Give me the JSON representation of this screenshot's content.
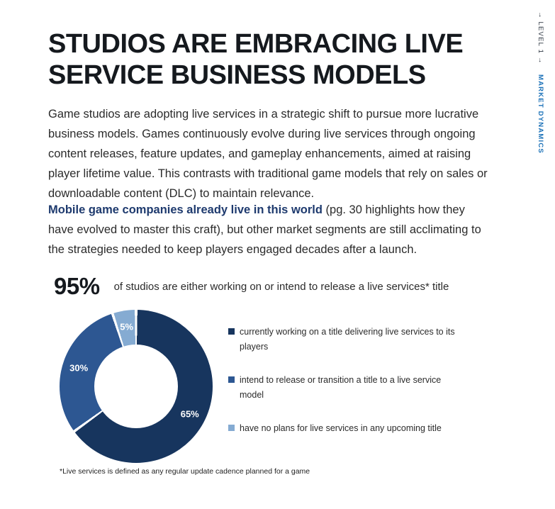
{
  "title": {
    "line1": "STUDIOS ARE EMBRACING LIVE",
    "line2": "SERVICE BUSINESS MODELS"
  },
  "paragraphs": {
    "intro": "Game studios are adopting live services in a strategic shift to pursue more lucrative business models. Games continuously evolve during live services through ongoing content releases, feature updates, and gameplay enhancements, aimed at raising player lifetime value. This contrasts with traditional game models that rely on sales or downloadable content (DLC) to maintain relevance.",
    "highlight_bold": "Mobile game companies already live in this world",
    "highlight_rest": " (pg. 30 highlights how they have evolved to master this craft), but other market segments are still acclimating to the strategies needed to keep players engaged decades after a launch."
  },
  "stat": {
    "value": "95%",
    "description": "of studios are either working on or intend to release a live services* title"
  },
  "chart_data": {
    "type": "pie",
    "subtype": "donut",
    "title": "95% of studios are either working on or intend to release a live services* title",
    "direction": "clockwise",
    "start_angle_deg": 0,
    "donut_hole_ratio": 0.55,
    "legend_position": "right",
    "data_label_color": "#ffffff",
    "slices": [
      {
        "label": "currently working on a title delivering live services to its players",
        "value": 65,
        "pct_label": "65%",
        "color": "#17355e"
      },
      {
        "label": "intend to release or transition a title to a live service model",
        "value": 30,
        "pct_label": "30%",
        "color": "#2d5792"
      },
      {
        "label": "have no plans for live services in any upcoming title",
        "value": 5,
        "pct_label": "5%",
        "color": "#85abd2"
      }
    ]
  },
  "footnote": "*Live services is defined as any regular update cadence planned for a game",
  "side_rail": {
    "level_label": "→  LEVEL 1  →",
    "section_label": "MARKET DYNAMICS"
  },
  "colors": {
    "heading_text": "#15191e",
    "body_text": "#2b2b2b",
    "highlight_navy": "#1e3a6e",
    "rail_accent_blue": "#1c72b8",
    "slice_dark_navy": "#17355e",
    "slice_medium_blue": "#2d5792",
    "slice_light_blue": "#85abd2"
  }
}
